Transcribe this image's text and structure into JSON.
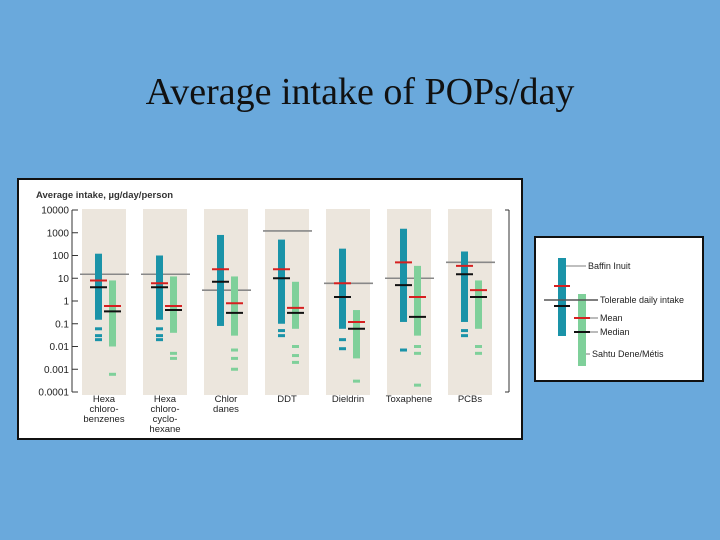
{
  "slide": {
    "title": "Average intake of POPs/day"
  },
  "chart_data": {
    "type": "range",
    "ylabel": "Average intake, µg/day/person",
    "yscale": "log",
    "ylim": [
      0.0001,
      10000
    ],
    "ytick_values": [
      10000,
      1000,
      100,
      10,
      1,
      0.1,
      0.01,
      0.001,
      0.0001
    ],
    "ytick_labels": [
      "10000",
      "1000",
      "100",
      "10",
      "1",
      "0.1",
      "0.01",
      "0.001",
      "0.0001"
    ],
    "categories": [
      {
        "lines": [
          "Hexa",
          "chloro-",
          "benzenes"
        ]
      },
      {
        "lines": [
          "Hexa",
          "chloro-",
          "cyclo-",
          "hexane"
        ]
      },
      {
        "lines": [
          "Chlor",
          "danes"
        ]
      },
      {
        "lines": [
          "DDT"
        ]
      },
      {
        "lines": [
          "Dieldrin"
        ]
      },
      {
        "lines": [
          "Toxaphene"
        ]
      },
      {
        "lines": [
          "PCBs"
        ]
      }
    ],
    "tolerable_daily_intake": [
      15,
      15,
      3,
      1200,
      6,
      10,
      50
    ],
    "series": [
      {
        "name": "Baffin Inuit",
        "color": "#1a93a8",
        "range": [
          [
            0.15,
            120
          ],
          [
            0.15,
            100
          ],
          [
            0.08,
            800
          ],
          [
            0.1,
            500
          ],
          [
            0.06,
            200
          ],
          [
            0.12,
            1500
          ],
          [
            0.12,
            150
          ]
        ],
        "outliers": [
          [
            0.06,
            0.03,
            0.02
          ],
          [
            0.06,
            0.03,
            0.02
          ],
          [],
          [
            0.05,
            0.03
          ],
          [
            0.02,
            0.008
          ],
          [
            0.007
          ],
          [
            0.05,
            0.03
          ]
        ],
        "mean": [
          8,
          6,
          25,
          25,
          6,
          50,
          35
        ],
        "median": [
          4,
          4,
          7,
          10,
          1.5,
          5,
          15
        ]
      },
      {
        "name": "Sahtu Dene/Métis",
        "color": "#7fd09a",
        "range": [
          [
            0.01,
            8
          ],
          [
            0.04,
            12
          ],
          [
            0.03,
            12
          ],
          [
            0.06,
            7
          ],
          [
            0.003,
            0.4
          ],
          [
            0.03,
            35
          ],
          [
            0.06,
            8
          ]
        ],
        "outliers": [
          [
            0.0006
          ],
          [
            0.005,
            0.003
          ],
          [
            0.007,
            0.003,
            0.001
          ],
          [
            0.01,
            0.004,
            0.002
          ],
          [
            0.0003
          ],
          [
            0.01,
            0.005,
            0.0002
          ],
          [
            0.01,
            0.005
          ]
        ],
        "mean": [
          0.6,
          0.6,
          0.8,
          0.5,
          0.12,
          1.5,
          3
        ],
        "median": [
          0.35,
          0.4,
          0.3,
          0.3,
          0.06,
          0.2,
          1.5
        ]
      }
    ],
    "legend": {
      "placement": "right",
      "items": [
        {
          "label": "Baffin Inuit",
          "swatch": "baffin"
        },
        {
          "label": "Tolerable daily intake",
          "swatch": "tdi"
        },
        {
          "label": "Mean",
          "swatch": "mean"
        },
        {
          "label": "Median",
          "swatch": "median"
        },
        {
          "label": "Sahtu Dene/Métis",
          "swatch": "sahtu"
        }
      ]
    }
  },
  "colors": {
    "column_bg": "#ece6dd",
    "tdi_line": "#888888",
    "mean": "#d62020",
    "median": "#111111"
  }
}
